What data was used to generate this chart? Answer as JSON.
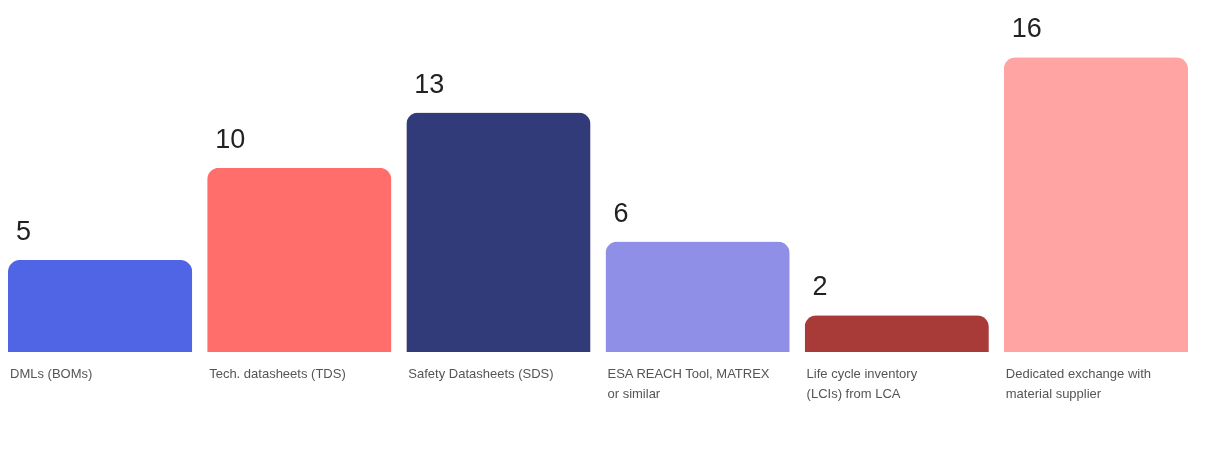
{
  "chart_data": {
    "type": "bar",
    "categories": [
      "DMLs (BOMs)",
      "Tech. datasheets (TDS)",
      "Safety Datasheets (SDS)",
      "ESA REACH Tool, MATREX or similar",
      "Life cycle inventory (LCIs) from LCA",
      "Dedicated exchange with material supplier"
    ],
    "values": [
      5,
      10,
      13,
      6,
      2,
      16
    ],
    "colors": [
      "#5064e6",
      "#ff6e6b",
      "#323b7a",
      "#8f8fe8",
      "#a83a38",
      "#ffa3a3"
    ],
    "data_labels": true
  }
}
